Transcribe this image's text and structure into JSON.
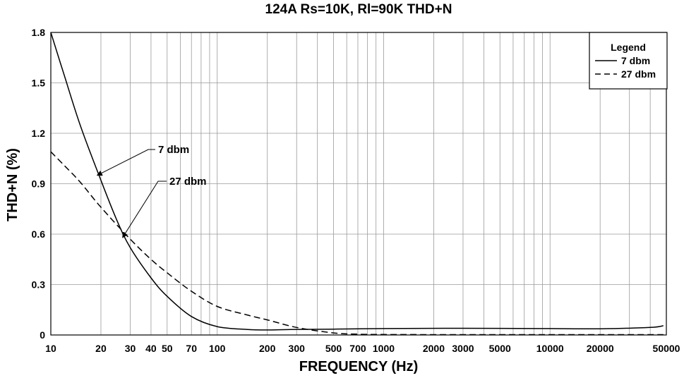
{
  "chart_data": {
    "type": "line",
    "title": "124A Rs=10K, Rl=90K  THD+N",
    "xlabel": "FREQUENCY (Hz)",
    "ylabel": "THD+N (%)",
    "xscale": "log",
    "xlim": [
      10,
      50000
    ],
    "ylim": [
      0,
      1.8
    ],
    "x_ticks": [
      10,
      20,
      30,
      40,
      50,
      70,
      100,
      200,
      300,
      500,
      700,
      1000,
      2000,
      3000,
      5000,
      10000,
      20000,
      50000
    ],
    "x_tick_labels": [
      "10",
      "20",
      "30",
      "40",
      "50",
      "70",
      "100",
      "200",
      "300",
      "500",
      "700",
      "1000",
      "2000",
      "3000",
      "5000",
      "10000",
      "20000",
      "50000"
    ],
    "y_ticks": [
      0,
      0.3,
      0.6,
      0.9,
      1.2,
      1.5,
      1.8
    ],
    "y_tick_labels": [
      "0",
      "0.3",
      "0.6",
      "0.9",
      "1.2",
      "1.5",
      "1.8"
    ],
    "grid": true,
    "legend": {
      "title": "Legend",
      "position": "top-right",
      "entries": [
        "7 dbm",
        "27 dbm"
      ]
    },
    "series": [
      {
        "name": "7 dbm",
        "style": "solid",
        "x": [
          10,
          12,
          15,
          20,
          25,
          30,
          40,
          50,
          70,
          100,
          150,
          200,
          300,
          500,
          1000,
          3000,
          10000,
          20000,
          40000,
          48000
        ],
        "y": [
          1.8,
          1.55,
          1.25,
          0.92,
          0.68,
          0.52,
          0.34,
          0.23,
          0.11,
          0.05,
          0.033,
          0.03,
          0.033,
          0.035,
          0.038,
          0.04,
          0.038,
          0.037,
          0.045,
          0.055
        ]
      },
      {
        "name": "27 dbm",
        "style": "dashed",
        "x": [
          10,
          12,
          15,
          20,
          30,
          40,
          50,
          70,
          100,
          150,
          200,
          300,
          500,
          700,
          1000,
          3000,
          10000,
          48000
        ],
        "y": [
          1.09,
          1.01,
          0.91,
          0.76,
          0.57,
          0.45,
          0.37,
          0.26,
          0.17,
          0.12,
          0.09,
          0.045,
          0.012,
          0.005,
          0.003,
          0.002,
          0.002,
          0.002
        ]
      }
    ],
    "annotations": [
      {
        "text": "7 dbm",
        "series": "7 dbm",
        "x": 19,
        "y": 0.95
      },
      {
        "text": "27 dbm",
        "series": "27 dbm",
        "x": 27,
        "y": 0.58
      }
    ]
  }
}
